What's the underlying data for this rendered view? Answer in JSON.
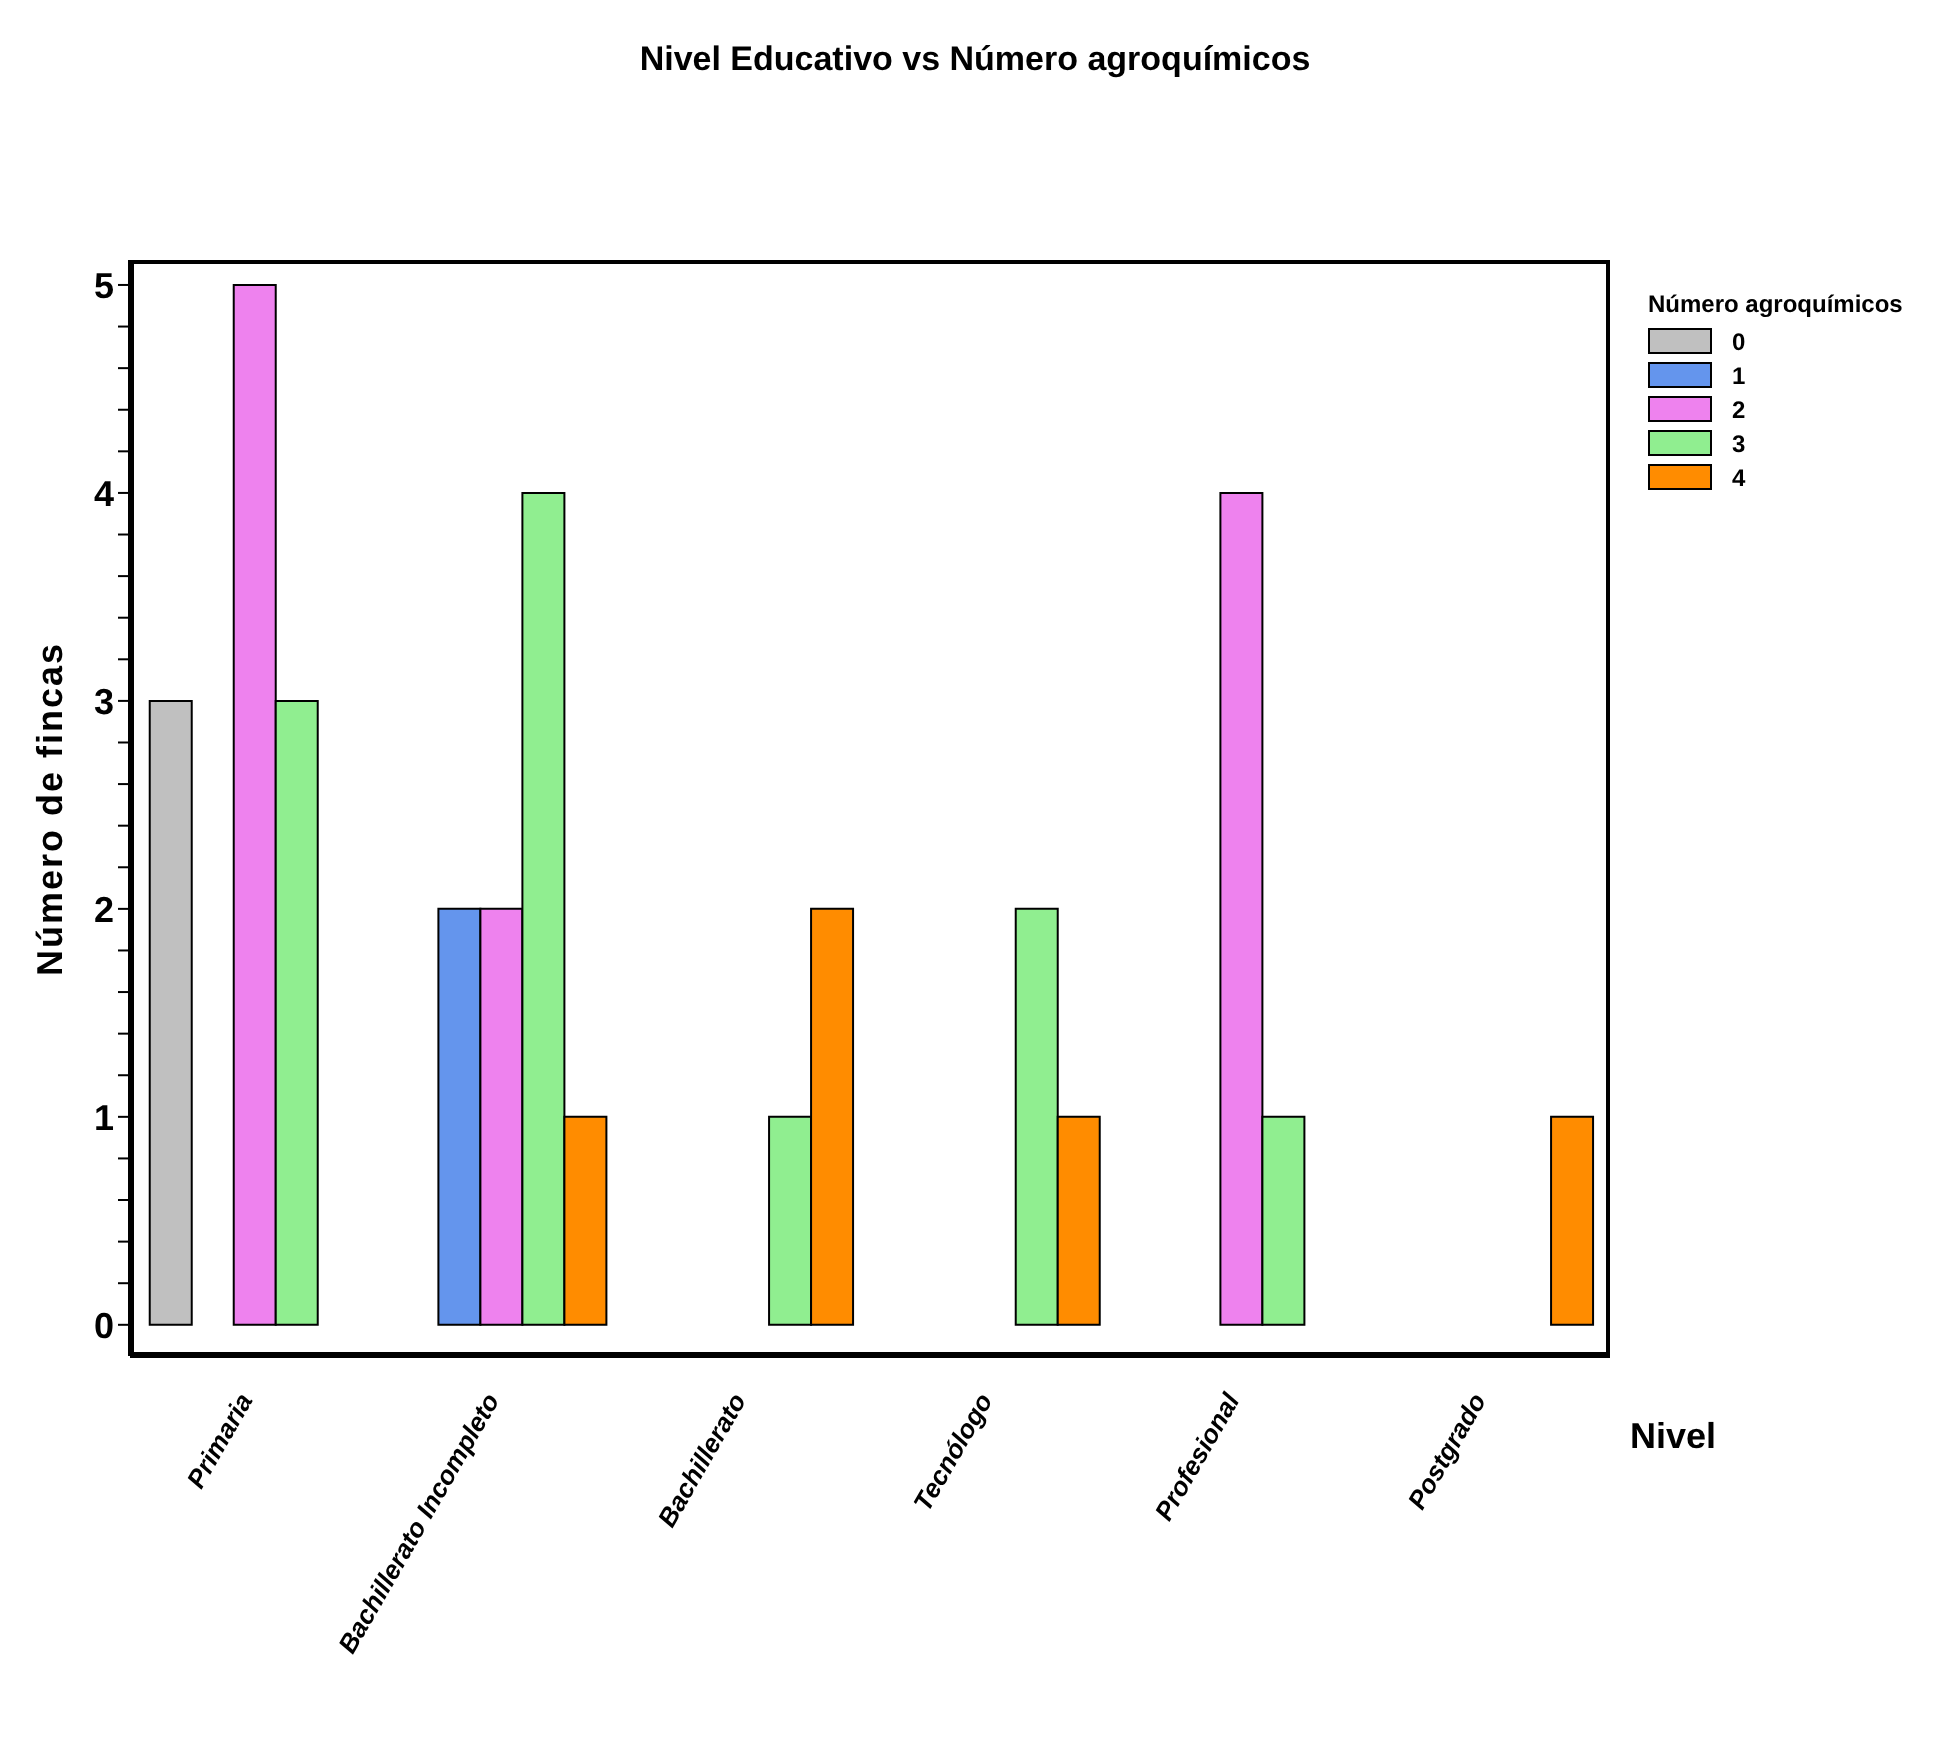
{
  "chart_data": {
    "type": "bar",
    "title": "Nivel Educativo vs Número agroquímicos",
    "xlabel": "Nivel",
    "ylabel": "Número de fincas",
    "legend_title": "Número agroquímicos",
    "legend": "top right",
    "grid": false,
    "categories": [
      "Primaria",
      "Bachillerato Incompleto",
      "Bachillerato",
      "Tecnólogo",
      "Profesional",
      "Postgrado"
    ],
    "series": [
      {
        "name": "0",
        "color": "#c0c0c0",
        "values": [
          3,
          0,
          0,
          0,
          0,
          0
        ]
      },
      {
        "name": "1",
        "color": "#6495ed",
        "values": [
          0,
          2,
          0,
          0,
          0,
          0
        ]
      },
      {
        "name": "2",
        "color": "#ee82ee",
        "values": [
          5,
          2,
          0,
          0,
          4,
          0
        ]
      },
      {
        "name": "3",
        "color": "#90ee90",
        "values": [
          3,
          4,
          1,
          2,
          1,
          0
        ]
      },
      {
        "name": "4",
        "color": "#ff8c00",
        "values": [
          0,
          1,
          2,
          1,
          0,
          1
        ]
      }
    ],
    "ylim": [
      -0.15,
      5.12
    ],
    "yticks": [
      0,
      {
        "value": 0.2,
        "label": null
      },
      {
        "value": 0.4,
        "label": null
      },
      {
        "value": 0.6,
        "label": null
      },
      {
        "value": 0.8,
        "label": null
      },
      1,
      {
        "value": 1.2,
        "label": null
      },
      {
        "value": 1.4,
        "label": null
      },
      {
        "value": 1.6,
        "label": null
      },
      {
        "value": 1.8,
        "label": null
      },
      2,
      {
        "value": 2.2,
        "label": null
      },
      {
        "value": 2.4,
        "label": null
      },
      {
        "value": 2.6,
        "label": null
      },
      {
        "value": 2.8,
        "label": null
      },
      3,
      {
        "value": 3.2,
        "label": null
      },
      {
        "value": 3.4,
        "label": null
      },
      {
        "value": 3.6,
        "label": null
      },
      {
        "value": 3.8,
        "label": null
      },
      4,
      {
        "value": 4.2,
        "label": null
      },
      {
        "value": 4.4,
        "label": null
      },
      {
        "value": 4.6,
        "label": null
      },
      {
        "value": 4.8,
        "label": null
      },
      5
    ]
  }
}
